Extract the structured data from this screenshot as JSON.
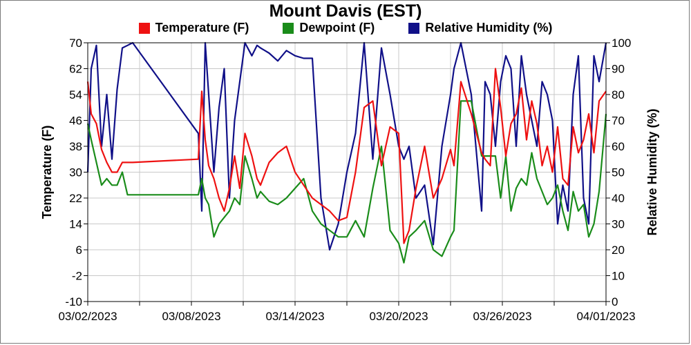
{
  "chart_data": {
    "type": "line",
    "title": "Mount Davis (EST)",
    "ylabel": "Temperature (F)",
    "y2label": "Relative Humidity (%)",
    "ylim": [
      -10,
      70
    ],
    "y2lim": [
      0,
      100
    ],
    "yticks": [
      "70",
      "62",
      "54",
      "46",
      "38",
      "30",
      "22",
      "14",
      "6",
      "-2",
      "-10"
    ],
    "y2ticks": [
      "100",
      "90",
      "80",
      "70",
      "60",
      "50",
      "40",
      "30",
      "20",
      "10",
      "0"
    ],
    "xticks": [
      "03/02/2023",
      "03/08/2023",
      "03/14/2023",
      "03/20/2023",
      "03/26/2023",
      "04/01/2023"
    ],
    "x_unit": "day of March 2023",
    "xlim": [
      2,
      32
    ],
    "grid": true,
    "legend_position": "top",
    "series": [
      {
        "name": "Temperature (F)",
        "color": "#ee1111",
        "axis": "left",
        "x": [
          2.0,
          2.2,
          2.5,
          2.8,
          3.1,
          3.4,
          3.7,
          4.0,
          4.3,
          4.6,
          8.4,
          8.6,
          8.8,
          9.0,
          9.3,
          9.6,
          9.9,
          10.2,
          10.5,
          10.8,
          11.1,
          11.5,
          11.8,
          12.0,
          12.5,
          13.0,
          13.5,
          14.0,
          14.5,
          15.0,
          15.5,
          16.0,
          16.5,
          17.0,
          17.5,
          18.0,
          18.5,
          19.0,
          19.5,
          20.0,
          20.3,
          20.6,
          21.0,
          21.5,
          22.0,
          22.5,
          23.0,
          23.2,
          23.6,
          24.2,
          24.8,
          25.0,
          25.3,
          25.6,
          25.9,
          26.2,
          26.5,
          26.8,
          27.1,
          27.4,
          27.7,
          28.0,
          28.3,
          28.6,
          28.9,
          29.2,
          29.5,
          29.8,
          30.1,
          30.4,
          30.7,
          31.0,
          31.3,
          31.6,
          32.0
        ],
        "values": [
          58,
          48,
          45,
          37,
          33,
          30,
          30,
          33,
          33,
          33,
          34,
          55,
          40,
          32,
          28,
          22,
          18,
          25,
          35,
          25,
          42,
          35,
          28,
          26,
          33,
          36,
          38,
          30,
          26,
          22,
          20,
          18,
          15,
          16,
          30,
          50,
          52,
          32,
          44,
          42,
          8,
          12,
          25,
          38,
          22,
          28,
          37,
          32,
          58,
          48,
          36,
          34,
          32,
          62,
          50,
          35,
          45,
          48,
          56,
          40,
          52,
          45,
          32,
          38,
          30,
          44,
          28,
          26,
          44,
          36,
          40,
          48,
          36,
          52,
          55
        ]
      },
      {
        "name": "Dewpoint (F)",
        "color": "#1a8c1a",
        "axis": "left",
        "x": [
          2.0,
          2.2,
          2.5,
          2.8,
          3.1,
          3.4,
          3.7,
          4.0,
          4.3,
          4.6,
          8.4,
          8.6,
          8.8,
          9.0,
          9.3,
          9.6,
          9.9,
          10.2,
          10.5,
          10.8,
          11.1,
          11.5,
          11.8,
          12.0,
          12.5,
          13.0,
          13.5,
          14.0,
          14.5,
          15.0,
          15.5,
          16.0,
          16.5,
          17.0,
          17.5,
          18.0,
          18.5,
          19.0,
          19.5,
          20.0,
          20.3,
          20.6,
          21.0,
          21.5,
          22.0,
          22.5,
          23.0,
          23.2,
          23.6,
          24.2,
          24.8,
          25.0,
          25.3,
          25.6,
          25.9,
          26.2,
          26.5,
          26.8,
          27.1,
          27.4,
          27.7,
          28.0,
          28.3,
          28.6,
          28.9,
          29.2,
          29.5,
          29.8,
          30.1,
          30.4,
          30.7,
          31.0,
          31.3,
          31.6,
          32.0
        ],
        "values": [
          45,
          40,
          33,
          26,
          28,
          26,
          26,
          30,
          23,
          23,
          23,
          28,
          22,
          20,
          10,
          14,
          16,
          18,
          22,
          20,
          35,
          28,
          22,
          24,
          21,
          20,
          22,
          25,
          28,
          18,
          14,
          12,
          10,
          10,
          15,
          10,
          25,
          38,
          12,
          8,
          2,
          10,
          12,
          15,
          6,
          4,
          10,
          12,
          52,
          52,
          35,
          35,
          35,
          35,
          22,
          35,
          18,
          25,
          28,
          26,
          36,
          28,
          24,
          20,
          22,
          26,
          18,
          12,
          24,
          18,
          20,
          10,
          14,
          24,
          48
        ]
      },
      {
        "name": "Relative Humidity (%)",
        "color": "#101088",
        "axis": "right",
        "x": [
          2.0,
          2.2,
          2.5,
          2.8,
          3.1,
          3.4,
          3.7,
          4.0,
          4.3,
          4.6,
          8.4,
          8.6,
          8.8,
          9.0,
          9.3,
          9.6,
          9.9,
          10.2,
          10.5,
          10.8,
          11.1,
          11.5,
          11.8,
          12.0,
          12.5,
          13.0,
          13.5,
          14.0,
          14.5,
          15.0,
          15.5,
          16.0,
          16.5,
          17.0,
          17.5,
          18.0,
          18.5,
          19.0,
          19.5,
          20.0,
          20.3,
          20.6,
          21.0,
          21.5,
          22.0,
          22.5,
          23.0,
          23.2,
          23.6,
          24.2,
          24.8,
          25.0,
          25.3,
          25.6,
          25.9,
          26.2,
          26.5,
          26.8,
          27.1,
          27.4,
          27.7,
          28.0,
          28.3,
          28.6,
          28.9,
          29.2,
          29.5,
          29.8,
          30.1,
          30.4,
          30.7,
          31.0,
          31.3,
          31.6,
          32.0
        ],
        "values": [
          50,
          90,
          99,
          60,
          80,
          55,
          82,
          98,
          99,
          100,
          65,
          35,
          100,
          80,
          50,
          75,
          90,
          40,
          70,
          85,
          100,
          95,
          99,
          98,
          96,
          93,
          97,
          95,
          94,
          94,
          40,
          20,
          30,
          50,
          65,
          100,
          55,
          98,
          80,
          60,
          55,
          60,
          40,
          45,
          22,
          60,
          80,
          90,
          100,
          80,
          35,
          85,
          80,
          60,
          85,
          95,
          90,
          60,
          95,
          80,
          70,
          60,
          85,
          80,
          70,
          30,
          45,
          35,
          80,
          95,
          40,
          30,
          95,
          85,
          100
        ]
      }
    ]
  }
}
